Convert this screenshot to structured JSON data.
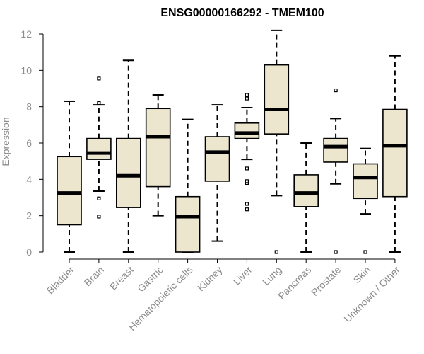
{
  "chart_data": {
    "type": "boxplot",
    "title": "ENSG00000166292 - TMEM100",
    "ylabel": "Expression",
    "xlabel": "",
    "ylim": [
      0,
      12
    ],
    "yticks": [
      0,
      2,
      4,
      6,
      8,
      10,
      12
    ],
    "grid": false,
    "colors": {
      "box_fill": "#ede6cf",
      "stroke": "#000000",
      "text": "#8c8c8c"
    },
    "categories": [
      "Bladder",
      "Brain",
      "Breast",
      "Gastric",
      "Hematopoietic cells",
      "Kidney",
      "Liver",
      "Lung",
      "Pancreas",
      "Prostate",
      "Skin",
      "Unknown / Other"
    ],
    "boxes": [
      {
        "q1": 1.5,
        "median": 3.25,
        "q3": 5.25,
        "whisker_low": 0.0,
        "whisker_high": 8.3,
        "outliers": []
      },
      {
        "q1": 5.1,
        "median": 5.45,
        "q3": 6.25,
        "whisker_low": 3.35,
        "whisker_high": 8.1,
        "outliers": [
          1.95,
          2.95,
          8.2,
          9.55
        ]
      },
      {
        "q1": 2.45,
        "median": 4.2,
        "q3": 6.25,
        "whisker_low": 0.0,
        "whisker_high": 10.55,
        "outliers": []
      },
      {
        "q1": 3.6,
        "median": 6.35,
        "q3": 7.9,
        "whisker_low": 2.0,
        "whisker_high": 8.65,
        "outliers": []
      },
      {
        "q1": 0.0,
        "median": 1.95,
        "q3": 3.05,
        "whisker_low": 0.0,
        "whisker_high": 7.3,
        "outliers": []
      },
      {
        "q1": 3.9,
        "median": 5.5,
        "q3": 6.35,
        "whisker_low": 0.6,
        "whisker_high": 8.1,
        "outliers": []
      },
      {
        "q1": 6.25,
        "median": 6.55,
        "q3": 7.1,
        "whisker_low": 5.1,
        "whisker_high": 7.95,
        "outliers": [
          2.35,
          2.65,
          3.8,
          3.9,
          4.6,
          8.45,
          8.65
        ]
      },
      {
        "q1": 6.5,
        "median": 7.85,
        "q3": 10.3,
        "whisker_low": 3.1,
        "whisker_high": 12.2,
        "outliers": [
          0.0
        ]
      },
      {
        "q1": 2.5,
        "median": 3.25,
        "q3": 4.25,
        "whisker_low": 0.0,
        "whisker_high": 6.0,
        "outliers": []
      },
      {
        "q1": 4.95,
        "median": 5.8,
        "q3": 6.25,
        "whisker_low": 3.75,
        "whisker_high": 7.35,
        "outliers": [
          0.0,
          8.9
        ]
      },
      {
        "q1": 2.95,
        "median": 4.1,
        "q3": 4.85,
        "whisker_low": 2.1,
        "whisker_high": 5.7,
        "outliers": [
          0.0
        ]
      },
      {
        "q1": 3.05,
        "median": 5.85,
        "q3": 7.85,
        "whisker_low": 0.0,
        "whisker_high": 10.8,
        "outliers": []
      }
    ]
  }
}
